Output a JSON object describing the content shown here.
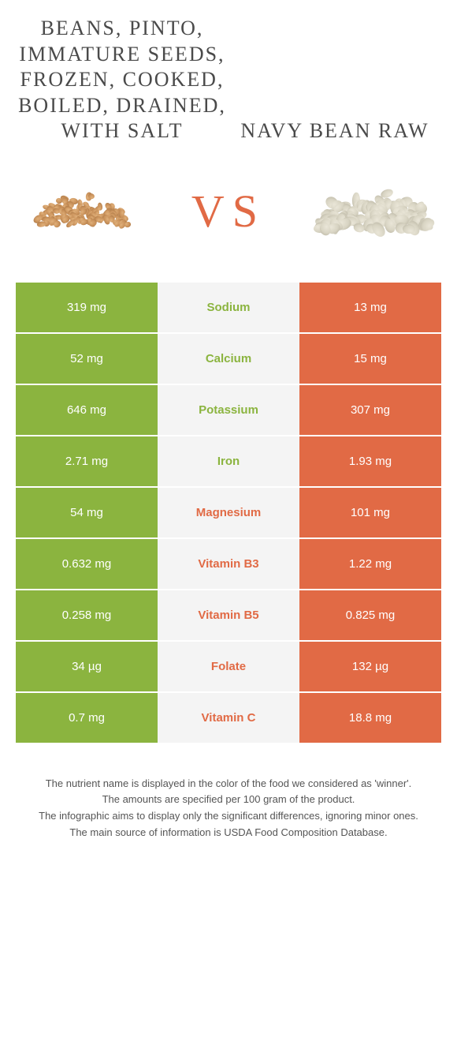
{
  "food_left": {
    "title": "BEANS, PINTO, IMMATURE SEEDS, FROZEN, COOKED, BOILED, DRAINED, WITH SALT"
  },
  "food_right": {
    "title": "NAVY BEAN RAW"
  },
  "vs": "VS",
  "colors": {
    "green": "#8bb43f",
    "orange": "#e16a45",
    "mid_bg": "#f4f4f4"
  },
  "rows": [
    {
      "left": "319 mg",
      "label": "Sodium",
      "right": "13 mg",
      "winner": "green"
    },
    {
      "left": "52 mg",
      "label": "Calcium",
      "right": "15 mg",
      "winner": "green"
    },
    {
      "left": "646 mg",
      "label": "Potassium",
      "right": "307 mg",
      "winner": "green"
    },
    {
      "left": "2.71 mg",
      "label": "Iron",
      "right": "1.93 mg",
      "winner": "green"
    },
    {
      "left": "54 mg",
      "label": "Magnesium",
      "right": "101 mg",
      "winner": "orange"
    },
    {
      "left": "0.632 mg",
      "label": "Vitamin B3",
      "right": "1.22 mg",
      "winner": "orange"
    },
    {
      "left": "0.258 mg",
      "label": "Vitamin B5",
      "right": "0.825 mg",
      "winner": "orange"
    },
    {
      "left": "34 µg",
      "label": "Folate",
      "right": "132 µg",
      "winner": "orange"
    },
    {
      "left": "0.7 mg",
      "label": "Vitamin C",
      "right": "18.8 mg",
      "winner": "orange"
    }
  ],
  "footer": [
    "The nutrient name is displayed in the color of the food we considered as 'winner'.",
    "The amounts are specified per 100 gram of the product.",
    "The infographic aims to display only the significant differences, ignoring minor ones.",
    "The main source of information is USDA Food Composition Database."
  ],
  "pinto_style": {
    "base_color": "#c9915a",
    "highlight": "#e0b07a",
    "shadow": "#9c6d3e"
  },
  "navy_style": {
    "base_color": "#d8d4c3",
    "highlight": "#eae6d8",
    "shadow": "#b5b09e"
  }
}
